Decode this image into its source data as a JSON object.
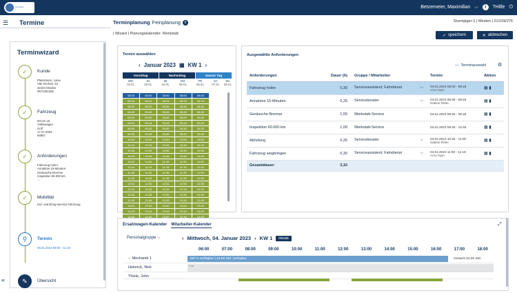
{
  "header": {
    "logo_text": "ermadam",
    "user": "Betzemeier, Maximilian",
    "info_label": "i",
    "help_label": "?Hilfe",
    "chevron": "⌵",
    "power": "⏻"
  },
  "page": {
    "title": "Termine",
    "tab_active": "Terminplanung",
    "tab_other": "Feinplanung",
    "tab_badge": "0",
    "branch": "Sturmjäger-1 | Minden | 21/109/276",
    "breadcrumb": "| Wizard | Planungskalender: Werkstatt",
    "save_label": "speichern",
    "cancel_label": "abbrechen"
  },
  "wizard": {
    "title": "Terminwizard",
    "steps": [
      {
        "label": "Kunde",
        "details": "Plassmann, Luise\nAlte Kirchstr. 52\n32423 Minden\n0571381255"
      },
      {
        "label": "Fahrzeug",
        "details": "MI-US 15\nVolkswagen\nGolf\n17.07.2003\n84957"
      },
      {
        "label": "Anforderungen",
        "details": "Fahrzeug holen\nAnnahme 15-Minuten\nGeräusche Bremse\nInspektion 60.000 km\n..."
      },
      {
        "label": "Mobilität",
        "details": "Hol- und Bring-Service Fahrzeug"
      },
      {
        "label": "Termin",
        "details": "04.01.2023 08:00 - 11:18"
      },
      {
        "label": "Übersicht",
        "details": ""
      }
    ],
    "collapse_icon": "«"
  },
  "calendar": {
    "title": "Termin auswählen",
    "month": "Januar 2023",
    "week": "KW 1",
    "segments": [
      "Vormittag",
      "Nachmittag",
      "Ganzer Tag"
    ],
    "days": [
      {
        "name": "MO.",
        "date": "02.01."
      },
      {
        "name": "DI.",
        "date": "03.01."
      },
      {
        "name": "MI.",
        "date": "04.01."
      },
      {
        "name": "DO.",
        "date": "05.01."
      },
      {
        "name": "FR.",
        "date": "06.01."
      }
    ],
    "weekend": [
      {
        "name": "SA.",
        "date": "07.01."
      },
      {
        "name": "SO.",
        "date": "08.01."
      }
    ],
    "times": [
      "08:00",
      "08:15",
      "08:30",
      "08:45",
      "09:00",
      "09:15",
      "09:30",
      "09:45",
      "10:00",
      "10:15",
      "10:30",
      "10:45",
      "11:00",
      "11:15",
      "11:30",
      "11:45",
      "12:00",
      "12:15",
      "12:30",
      "12:45",
      "13:00",
      "13:15",
      "13:30",
      "13:45"
    ],
    "selected_time": "08:00"
  },
  "requirements": {
    "title": "Ausgewählte Anforderungen",
    "terminauswahl": "Terminauswahl",
    "columns": [
      "Anforderungen",
      "Dauer (h)",
      "Gruppe / Mitarbeiter",
      "Termin",
      "Aktion"
    ],
    "rows": [
      {
        "name": "Fahrzeug holen",
        "dauer": "0,30",
        "gruppe": "Serviceassistent; Fahrdienst",
        "termin": "04.01.2023 08:00 - 08:18",
        "person": "Arno Nym"
      },
      {
        "name": "Annahme 15-Minuten",
        "dauer": "0,25",
        "gruppe": "Serviceberater",
        "termin": "04.01.2023 08:30 - 08:45",
        "person": "Sabine Ritter"
      },
      {
        "name": "Geräusche Bremse",
        "dauer": "1,00",
        "gruppe": "Werkstatt-Service",
        "termin": "04.01.2023 08:45 - 09:45",
        "person": ""
      },
      {
        "name": "Inspektion 60.000 km",
        "dauer": "1,00",
        "gruppe": "Werkstatt-Service",
        "termin": "04.01.2023 09:45 - 10:45",
        "person": ""
      },
      {
        "name": "Abholung",
        "dauer": "0,25",
        "gruppe": "Serviceberater",
        "termin": "04.01.2023 10:45 - 11:00",
        "person": "Sabine Ritter"
      },
      {
        "name": "Fahrzeug wegbringen",
        "dauer": "0,30",
        "gruppe": "Serviceassistent; Fahrdienst",
        "termin": "04.01.2023 11:00 - 11:18",
        "person": "Arno Nym"
      }
    ],
    "total_label": "Gesamtdauer:",
    "total_value": "3,10"
  },
  "bottom": {
    "tab1": "Ersatzwagen-Kalender",
    "tab2": "Mitarbeiter-Kalender",
    "group_select": "Personalgruppe",
    "date": "Mittwoch, 04. Januar 2023",
    "week": "KW 1",
    "today": "Heute",
    "hours": [
      "06:00",
      "07:00",
      "08:00",
      "09:00",
      "10:00",
      "11:00",
      "12:00",
      "13:00",
      "14:00",
      "15:00",
      "16:00",
      "17:00",
      "18:00"
    ],
    "rows": [
      {
        "name": "Mechanik 1",
        "bar": "100 % verfügbar | 24,00 Std. verfügbar",
        "gesamt": "Gesamt   24,00 Std."
      },
      {
        "name": "Heinrich, Nick",
        "tag": "Frei"
      },
      {
        "name": "Thiele, John"
      }
    ]
  }
}
